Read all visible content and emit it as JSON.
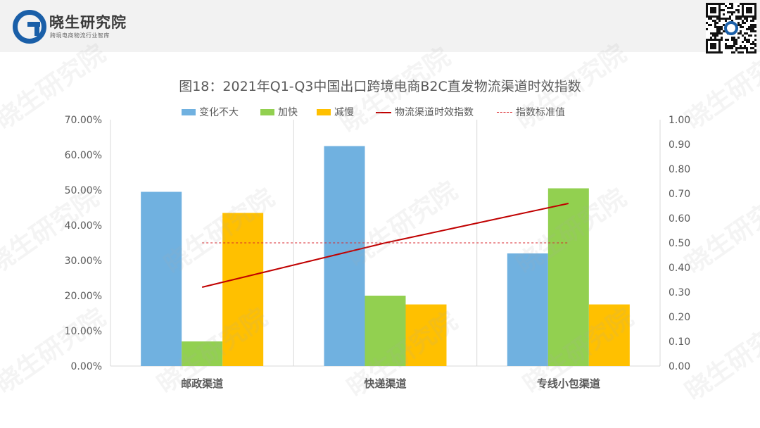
{
  "brand": {
    "name": "晓生研究院",
    "tagline": "跨境电商物流行业智库",
    "colors": {
      "primary": "#1a5fa8"
    }
  },
  "watermark_text": "晓生研究院",
  "chart_data": {
    "type": "bar",
    "title": "图18：2021年Q1-Q3中国出口跨境电商B2C直发物流渠道时效指数",
    "categories": [
      "邮政渠道",
      "快递渠道",
      "专线小包渠道"
    ],
    "series": [
      {
        "name": "变化不大",
        "kind": "bar",
        "axis": "left",
        "color": "#70b1e0",
        "values": [
          49.5,
          62.5,
          32.0
        ]
      },
      {
        "name": "加快",
        "kind": "bar",
        "axis": "left",
        "color": "#92d050",
        "values": [
          7.0,
          20.0,
          50.5
        ]
      },
      {
        "name": "减慢",
        "kind": "bar",
        "axis": "left",
        "color": "#ffc000",
        "values": [
          43.5,
          17.5,
          17.5
        ]
      },
      {
        "name": "物流渠道时效指数",
        "kind": "line",
        "axis": "right",
        "color": "#c00000",
        "values": [
          0.32,
          0.5,
          0.66
        ]
      },
      {
        "name": "指数标准值",
        "kind": "dashed-line",
        "axis": "right",
        "color": "#d9262c",
        "values": [
          0.5,
          0.5,
          0.5
        ]
      }
    ],
    "left_axis": {
      "ylim": [
        0,
        70
      ],
      "ticks": [
        "0.00%",
        "10.00%",
        "20.00%",
        "30.00%",
        "40.00%",
        "50.00%",
        "60.00%",
        "70.00%"
      ]
    },
    "right_axis": {
      "ylim": [
        0,
        1
      ],
      "ticks": [
        "0.00",
        "0.10",
        "0.20",
        "0.30",
        "0.40",
        "0.50",
        "0.60",
        "0.70",
        "0.80",
        "0.90",
        "1.00"
      ]
    },
    "legend_position": "top",
    "grid": false
  }
}
